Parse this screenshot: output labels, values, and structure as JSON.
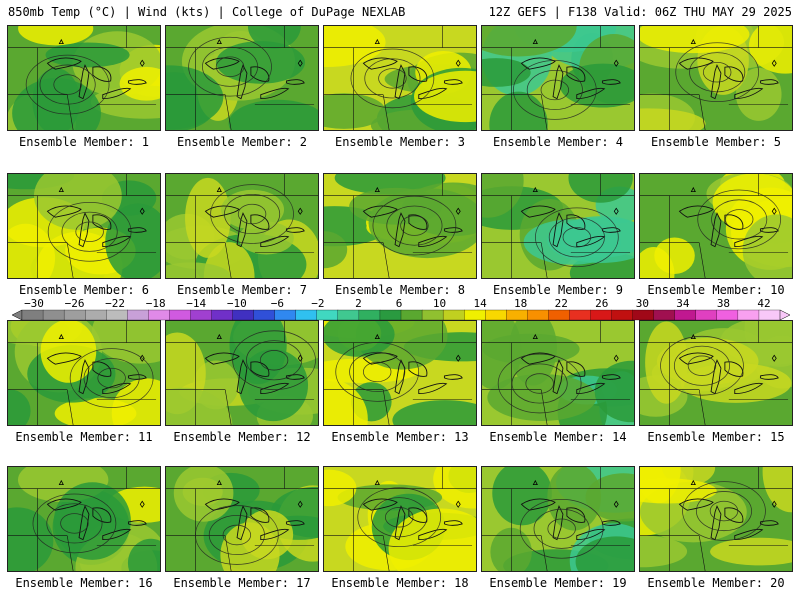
{
  "header": {
    "left": "850mb Temp (°C) | Wind (kts) | College of DuPage NEXLAB",
    "right": "12Z GEFS | F138 Valid: 06Z THU MAY 29 2025"
  },
  "member_label_prefix": "Ensemble Member: ",
  "members": [
    "1",
    "2",
    "3",
    "4",
    "5",
    "6",
    "7",
    "8",
    "9",
    "10",
    "11",
    "12",
    "13",
    "14",
    "15",
    "16",
    "17",
    "18",
    "19",
    "20"
  ],
  "colorbar": {
    "ticks": [
      "−30",
      "−26",
      "−22",
      "−18",
      "−14",
      "−10",
      "−6",
      "−2",
      "2",
      "6",
      "10",
      "14",
      "18",
      "22",
      "26",
      "30",
      "34",
      "38",
      "42"
    ],
    "colors": [
      "#7f7f7f",
      "#8f8f8f",
      "#9e9e9e",
      "#acacac",
      "#bcbcbc",
      "#c8a0d8",
      "#e08ae8",
      "#d05ae0",
      "#a040d0",
      "#7030c8",
      "#4030c0",
      "#3050d8",
      "#3088f0",
      "#30c0f0",
      "#40d8c0",
      "#40c890",
      "#30b060",
      "#2a9a40",
      "#5aa830",
      "#90c030",
      "#c0d020",
      "#f0f000",
      "#f8d800",
      "#f8b000",
      "#f89000",
      "#f06000",
      "#e83020",
      "#d81818",
      "#c01010",
      "#a00818",
      "#a01050",
      "#c01890",
      "#e040c0",
      "#f060e0",
      "#f8a0f0",
      "#f8c8f8"
    ]
  },
  "field_colors": {
    "dark_green": "#2a9a3a",
    "mid_green": "#5aa830",
    "light_green": "#9ac830",
    "yellow_green": "#c8d820",
    "yellow": "#f0f000",
    "teal": "#3cc890",
    "orange": "#f8c000"
  }
}
